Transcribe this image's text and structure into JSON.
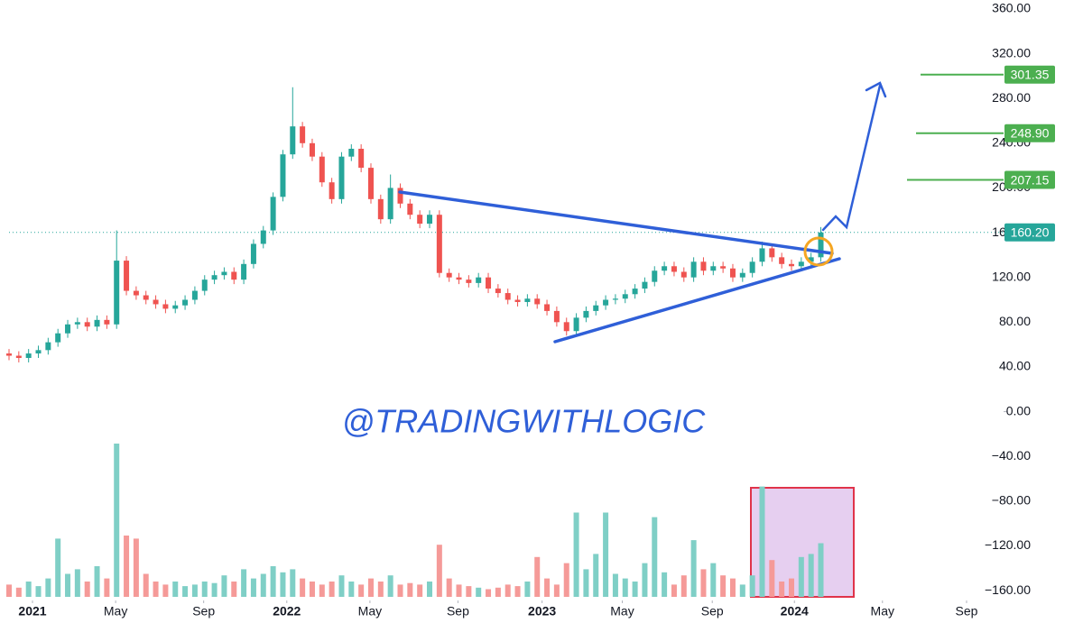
{
  "chart_data": {
    "type": "candlestick",
    "watermark": "@TRADINGWITHLOGIC",
    "up_color": "#26a69a",
    "down_color": "#ef5350",
    "volume_up_color": "#7fcfc6",
    "volume_down_color": "#f59a98",
    "xlim": [
      0,
      101.5
    ],
    "xticks": [
      {
        "value": 2.4,
        "label": "2021"
      },
      {
        "value": 10.9,
        "label": "May"
      },
      {
        "value": 19.9,
        "label": "Sep"
      },
      {
        "value": 28.4,
        "label": "2022"
      },
      {
        "value": 36.9,
        "label": "May"
      },
      {
        "value": 45.9,
        "label": "Sep"
      },
      {
        "value": 54.5,
        "label": "2023"
      },
      {
        "value": 62.7,
        "label": "May"
      },
      {
        "value": 71.9,
        "label": "Sep"
      },
      {
        "value": 80.3,
        "label": "2024"
      },
      {
        "value": 89.3,
        "label": "May"
      },
      {
        "value": 97.9,
        "label": "Sep"
      }
    ],
    "ylim": [
      -168,
      368
    ],
    "yticks": [
      {
        "value": 360,
        "label": "360.00"
      },
      {
        "value": 320,
        "label": "320.00"
      },
      {
        "value": 280,
        "label": "280.00"
      },
      {
        "value": 240,
        "label": "240.00"
      },
      {
        "value": 200,
        "label": "200.00"
      },
      {
        "value": 160,
        "label": "160.00"
      },
      {
        "value": 120,
        "label": "120.00"
      },
      {
        "value": 80,
        "label": "80.00"
      },
      {
        "value": 40,
        "label": "40.00"
      },
      {
        "value": 0,
        "label": "0.00"
      },
      {
        "value": -40,
        "label": "−40.00"
      },
      {
        "value": -80,
        "label": "−80.00"
      },
      {
        "value": -120,
        "label": "−120.00"
      },
      {
        "value": -160,
        "label": "−160.00"
      }
    ],
    "price_line": {
      "value": 160.2,
      "label": "160.20",
      "color": "#26a69a"
    },
    "targets": [
      {
        "value": 301.35,
        "label": "301.35"
      },
      {
        "value": 248.9,
        "label": "248.90"
      },
      {
        "value": 207.15,
        "label": "207.15"
      }
    ],
    "target_color": "#4caf50",
    "open": [
      52,
      50,
      48,
      52,
      55,
      62,
      70,
      78,
      80,
      76,
      82,
      78,
      135,
      108,
      104,
      100,
      96,
      92,
      95,
      100,
      108,
      118,
      122,
      125,
      118,
      132,
      150,
      162,
      192,
      230,
      255,
      240,
      228,
      205,
      190,
      228,
      235,
      218,
      190,
      172,
      200,
      186,
      176,
      168,
      176,
      124,
      120,
      118,
      115,
      120,
      110,
      106,
      100,
      98,
      101,
      96,
      90,
      80,
      72,
      84,
      90,
      95,
      100,
      101,
      105,
      110,
      116,
      126,
      130,
      125,
      120,
      134,
      126,
      130,
      128,
      120,
      124,
      134,
      146,
      138,
      132,
      130,
      134,
      138
    ],
    "high": [
      56,
      54,
      56,
      59,
      66,
      74,
      82,
      84,
      84,
      86,
      86,
      162,
      139,
      112,
      108,
      104,
      100,
      99,
      104,
      112,
      122,
      126,
      129,
      129,
      136,
      154,
      166,
      196,
      234,
      290,
      259,
      244,
      232,
      209,
      232,
      239,
      239,
      222,
      194,
      212,
      204,
      190,
      180,
      180,
      180,
      128,
      124,
      122,
      124,
      124,
      114,
      110,
      104,
      105,
      105,
      100,
      94,
      84,
      88,
      94,
      99,
      104,
      105,
      109,
      114,
      120,
      130,
      134,
      134,
      129,
      138,
      138,
      134,
      134,
      132,
      128,
      138,
      152,
      150,
      142,
      136,
      138,
      142,
      165
    ],
    "low": [
      46,
      44,
      44,
      48,
      51,
      58,
      66,
      74,
      72,
      72,
      74,
      74,
      104,
      100,
      96,
      92,
      88,
      88,
      91,
      96,
      104,
      114,
      118,
      114,
      114,
      128,
      146,
      158,
      188,
      226,
      236,
      224,
      201,
      186,
      186,
      224,
      214,
      186,
      168,
      168,
      182,
      172,
      164,
      164,
      120,
      116,
      114,
      111,
      111,
      106,
      102,
      96,
      94,
      94,
      92,
      86,
      76,
      68,
      68,
      80,
      86,
      91,
      96,
      97,
      101,
      106,
      112,
      122,
      121,
      116,
      116,
      122,
      122,
      124,
      116,
      116,
      120,
      130,
      134,
      128,
      126,
      126,
      130,
      134
    ],
    "close": [
      50,
      48,
      52,
      55,
      62,
      70,
      78,
      80,
      76,
      82,
      78,
      135,
      108,
      104,
      100,
      96,
      92,
      95,
      100,
      108,
      118,
      122,
      125,
      118,
      132,
      150,
      162,
      192,
      230,
      255,
      240,
      228,
      205,
      190,
      228,
      235,
      218,
      190,
      172,
      200,
      186,
      176,
      168,
      176,
      124,
      120,
      118,
      115,
      120,
      110,
      106,
      100,
      98,
      101,
      96,
      90,
      80,
      72,
      84,
      90,
      95,
      100,
      101,
      105,
      110,
      116,
      126,
      130,
      125,
      120,
      134,
      126,
      130,
      128,
      120,
      124,
      134,
      146,
      138,
      132,
      130,
      134,
      138,
      160.2
    ],
    "volume": [
      8,
      6,
      10,
      7,
      12,
      38,
      15,
      18,
      10,
      20,
      12,
      100,
      40,
      38,
      15,
      10,
      8,
      10,
      7,
      8,
      10,
      9,
      14,
      10,
      18,
      12,
      15,
      20,
      16,
      18,
      12,
      10,
      8,
      10,
      14,
      10,
      8,
      12,
      10,
      14,
      8,
      9,
      8,
      10,
      34,
      12,
      8,
      7,
      6,
      5,
      6,
      8,
      7,
      10,
      26,
      12,
      8,
      22,
      55,
      18,
      28,
      55,
      15,
      12,
      10,
      22,
      52,
      16,
      8,
      14,
      37,
      18,
      22,
      14,
      12,
      8,
      14,
      72,
      24,
      10,
      12,
      26,
      28,
      35
    ]
  }
}
